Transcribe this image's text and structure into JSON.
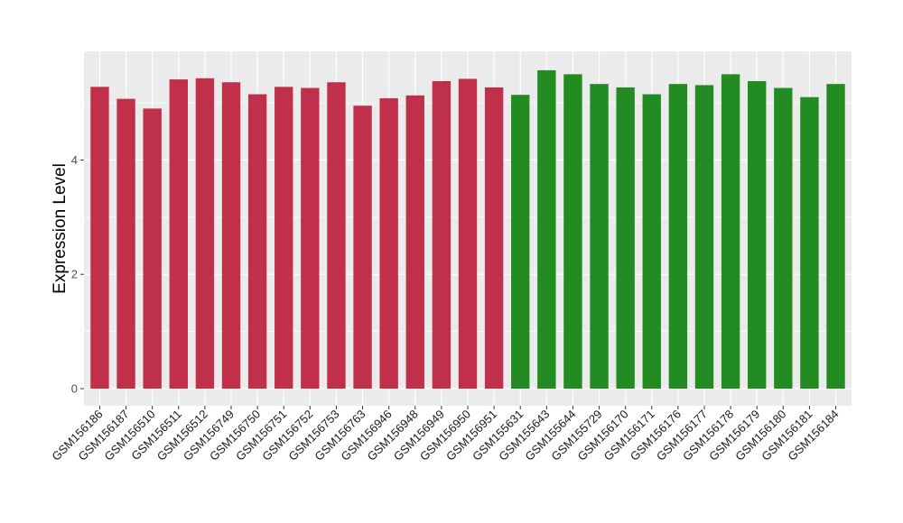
{
  "chart_data": {
    "type": "bar",
    "ylabel": "Expression Level",
    "xlabel": "",
    "ylim": [
      -0.3,
      5.9
    ],
    "yticks": [
      0,
      2,
      4
    ],
    "grid": true,
    "legend": "none",
    "background": "#ebebeb",
    "grid_color": "#ffffff",
    "group_colors": [
      "#c1304a",
      "#228b22"
    ],
    "categories": [
      "GSM156186",
      "GSM156187",
      "GSM156510",
      "GSM156511",
      "GSM156512",
      "GSM156749",
      "GSM156750",
      "GSM156751",
      "GSM156752",
      "GSM156753",
      "GSM156763",
      "GSM156946",
      "GSM156948",
      "GSM156949",
      "GSM156950",
      "GSM156951",
      "GSM155631",
      "GSM155643",
      "GSM155644",
      "GSM155729",
      "GSM156170",
      "GSM156171",
      "GSM156176",
      "GSM156177",
      "GSM156178",
      "GSM156179",
      "GSM156180",
      "GSM156181",
      "GSM156184"
    ],
    "values": [
      5.28,
      5.07,
      4.9,
      5.41,
      5.43,
      5.36,
      5.15,
      5.28,
      5.26,
      5.36,
      4.95,
      5.08,
      5.13,
      5.38,
      5.42,
      5.27,
      5.14,
      5.57,
      5.5,
      5.33,
      5.27,
      5.15,
      5.33,
      5.31,
      5.5,
      5.38,
      5.26,
      5.1,
      5.33
    ],
    "groups": [
      0,
      0,
      0,
      0,
      0,
      0,
      0,
      0,
      0,
      0,
      0,
      0,
      0,
      0,
      0,
      0,
      1,
      1,
      1,
      1,
      1,
      1,
      1,
      1,
      1,
      1,
      1,
      1,
      1
    ]
  }
}
